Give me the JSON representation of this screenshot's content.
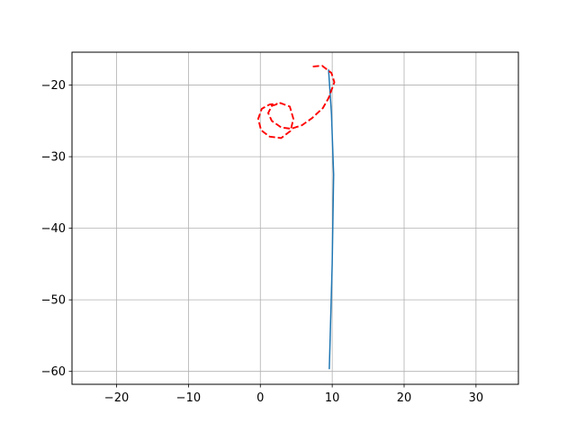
{
  "chart_data": {
    "type": "line",
    "title": "",
    "xlabel": "",
    "ylabel": "",
    "xlim": [
      -26.2,
      35.9
    ],
    "ylim": [
      -61.8,
      -15.4
    ],
    "grid": true,
    "x_ticks": [
      -20,
      -10,
      0,
      10,
      20,
      30
    ],
    "y_ticks": [
      -20,
      -30,
      -40,
      -50,
      -60
    ],
    "x_tick_labels": [
      "−20",
      "−10",
      "0",
      "10",
      "20",
      "30"
    ],
    "y_tick_labels": [
      "−20",
      "−30",
      "−40",
      "−50",
      "−60"
    ],
    "series": [
      {
        "style": "solid",
        "color": "#1f77b4",
        "x": [
          9.6,
          10.0,
          10.2,
          9.9,
          9.5
        ],
        "y": [
          -59.6,
          -45.0,
          -32.5,
          -24.0,
          -17.9
        ]
      },
      {
        "style": "dashed",
        "color": "#ff0000",
        "x": [
          7.3,
          8.6,
          9.9,
          10.3,
          9.5,
          8.7,
          7.2,
          5.8,
          4.3,
          2.9,
          1.6,
          1.1,
          1.6,
          2.8,
          4.1,
          4.6,
          4.2,
          2.9,
          1.3,
          0.1,
          -0.3,
          0.2,
          1.3,
          2.4
        ],
        "y": [
          -17.4,
          -17.3,
          -18.3,
          -19.6,
          -21.8,
          -23.2,
          -24.6,
          -25.6,
          -26.1,
          -25.9,
          -25.0,
          -23.9,
          -22.9,
          -22.5,
          -23.0,
          -24.7,
          -26.4,
          -27.4,
          -27.2,
          -26.3,
          -24.7,
          -23.3,
          -22.7,
          -22.6
        ]
      }
    ]
  }
}
